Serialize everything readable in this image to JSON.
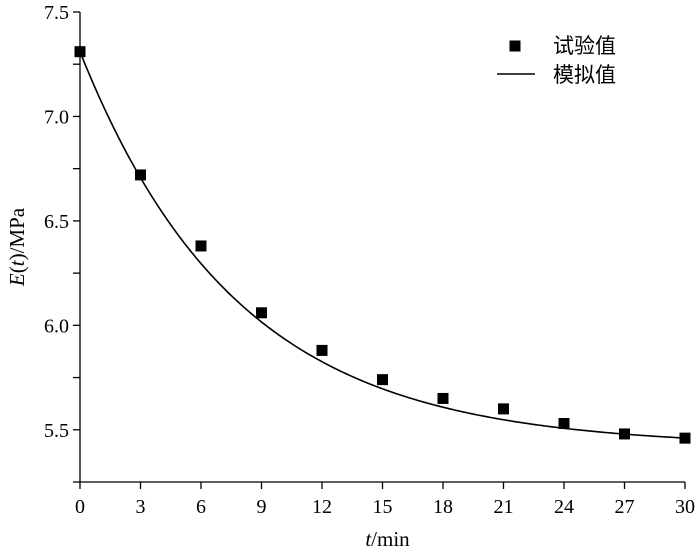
{
  "chart_data": {
    "type": "scatter",
    "xlabel": {
      "var": "t",
      "unit": "/min"
    },
    "ylabel": {
      "var_pre": "E(",
      "var_t": "t",
      "var_post": ")",
      "unit": "/MPa"
    },
    "xlim": [
      0,
      30
    ],
    "ylim": [
      5.25,
      7.5
    ],
    "xticks": [
      0,
      3,
      6,
      9,
      12,
      15,
      18,
      21,
      24,
      27,
      30
    ],
    "xtick_labels": [
      "0",
      "3",
      "6",
      "9",
      "12",
      "15",
      "18",
      "21",
      "24",
      "27",
      "30"
    ],
    "yticks": [
      5.5,
      6.0,
      6.5,
      7.0,
      7.5
    ],
    "ytick_labels": [
      "5.5",
      "6.0",
      "6.5",
      "7.0",
      "7.5"
    ],
    "grid": false,
    "legend_position": "top-right",
    "series": [
      {
        "name": "试验值",
        "kind": "markers",
        "marker": "square",
        "color": "#000000",
        "x": [
          0,
          3,
          6,
          9,
          12,
          15,
          18,
          21,
          24,
          27,
          30
        ],
        "y": [
          7.31,
          6.72,
          6.38,
          6.06,
          5.88,
          5.74,
          5.65,
          5.6,
          5.53,
          5.48,
          5.46
        ]
      },
      {
        "name": "模拟值",
        "kind": "line",
        "color": "#000000",
        "model": {
          "form": "a + b*exp(-t/tau)",
          "a": 5.42,
          "b": 1.89,
          "tau": 7.8
        }
      }
    ]
  }
}
